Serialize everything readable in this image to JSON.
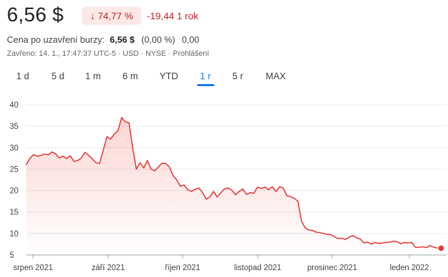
{
  "quote": {
    "price": "6,56 $",
    "change_percent": "74,77 %",
    "change_arrow": "↓",
    "change_absolute": "-19,44 1 rok",
    "after_hours_label": "Cena po uzavření burzy:",
    "after_hours_value": "6,56 $",
    "after_hours_percent": "(0,00 %)",
    "after_hours_change": "0,00",
    "meta": "Zavřeno: 14. 1., 17:47:37 UTC-5 · USD · NYSE · Prohlášení"
  },
  "range_tabs": [
    {
      "label": "1 d"
    },
    {
      "label": "5 d"
    },
    {
      "label": "1 m"
    },
    {
      "label": "6 m"
    },
    {
      "label": "YTD"
    },
    {
      "label": "1 r",
      "active": true
    },
    {
      "label": "5 r"
    },
    {
      "label": "MAX"
    }
  ],
  "colors": {
    "line": "#e53935",
    "accent": "#1a73e8",
    "negative": "#c5221f"
  },
  "chart_data": {
    "type": "area",
    "ylim": [
      5,
      40
    ],
    "y_ticks": [
      5,
      10,
      15,
      20,
      25,
      30,
      35,
      40
    ],
    "grid": true,
    "x_tick_labels": [
      "srpen 2021",
      "září 2021",
      "říjen 2021",
      "listopad 2021",
      "prosinec 2021",
      "leden 2022"
    ],
    "series": [
      {
        "values": [
          26.0,
          27.5,
          28.4,
          28.0,
          28.2,
          28.5,
          28.3,
          29.0,
          28.6,
          27.6,
          28.0,
          27.5,
          28.1,
          26.8,
          27.0,
          27.6,
          28.9,
          28.2,
          27.4,
          26.5,
          26.3,
          29.5,
          32.6,
          32.0,
          33.2,
          34.0,
          37.0,
          36.0,
          35.8,
          30.0,
          25.0,
          26.5,
          25.3,
          27.0,
          25.0,
          24.6,
          25.5,
          26.4,
          26.3,
          25.5,
          23.5,
          22.5,
          21.0,
          21.3,
          20.2,
          19.8,
          20.3,
          20.6,
          19.6,
          18.0,
          18.5,
          19.8,
          18.5,
          19.5,
          20.4,
          20.6,
          20.1,
          19.0,
          19.8,
          20.4,
          19.1,
          19.5,
          19.4,
          20.8,
          20.5,
          20.8,
          20.2,
          20.9,
          19.8,
          20.9,
          20.6,
          18.8,
          18.6,
          18.2,
          17.5,
          12.8,
          11.3,
          10.8,
          10.7,
          10.3,
          10.2,
          10.0,
          9.8,
          9.7,
          9.2,
          8.8,
          8.9,
          8.6,
          9.2,
          9.5,
          9.0,
          8.7,
          7.8,
          8.0,
          7.5,
          7.9,
          7.7,
          7.8,
          7.9,
          8.0,
          8.2,
          8.1,
          7.6,
          7.9,
          7.8,
          7.9,
          6.8,
          6.8,
          6.9,
          6.7,
          7.2,
          6.8,
          6.6,
          6.56
        ]
      }
    ]
  }
}
